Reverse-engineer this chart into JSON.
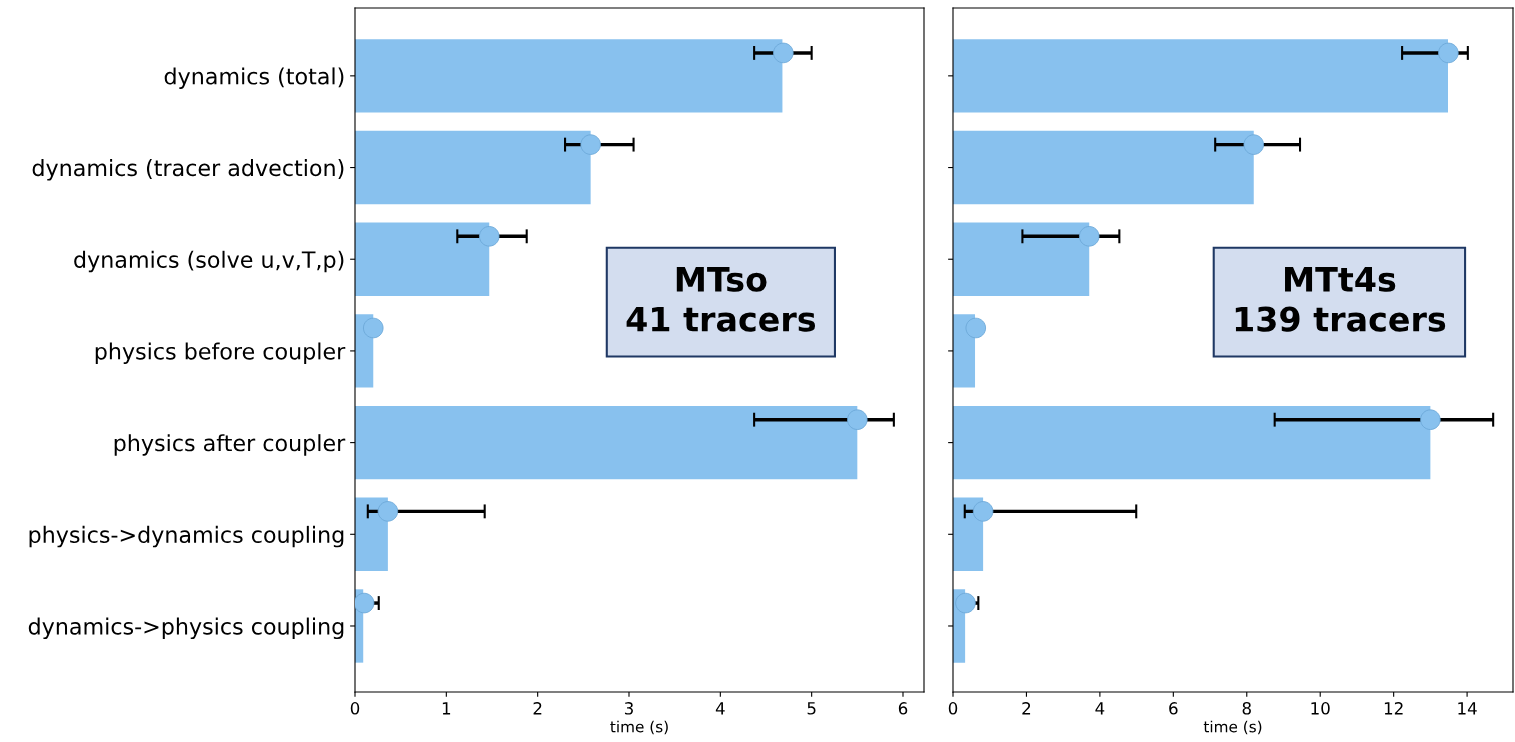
{
  "chart_data": [
    {
      "type": "bar",
      "orientation": "horizontal",
      "xlabel": "time (s)",
      "annotations": [
        "MTso\n41 tracers"
      ],
      "categories": [
        "dynamics (total)",
        "dynamics (tracer advection)",
        "dynamics (solve u,v,T,p)",
        "physics before coupler",
        "physics after coupler",
        "physics->dynamics coupling",
        "dynamics->physics coupling"
      ],
      "series": [
        {
          "type": "bar",
          "color": "#88c1ee",
          "values": [
            4.68,
            2.58,
            1.47,
            0.2,
            5.5,
            0.36,
            0.09
          ]
        },
        {
          "type": "scatter",
          "color": "#88c1ee",
          "marker": "circle",
          "x": [
            "dynamics (total)",
            "dynamics (tracer advection)",
            "dynamics (solve u,v,T,p)",
            "physics before coupler",
            "physics after coupler",
            "physics->dynamics coupling",
            "dynamics->physics coupling"
          ],
          "values": [
            4.69,
            2.58,
            1.47,
            0.2,
            5.5,
            0.36,
            0.1
          ],
          "errors": [
            [
              4.37,
              5.0
            ],
            [
              2.3,
              3.05
            ],
            [
              1.12,
              1.88
            ],
            null,
            [
              4.37,
              5.9
            ],
            [
              0.14,
              1.42
            ],
            [
              0.1,
              0.26
            ]
          ]
        }
      ],
      "xlim": [
        0,
        6.23
      ],
      "xticks": [
        0,
        1,
        2,
        3,
        4,
        5,
        6
      ]
    },
    {
      "type": "bar",
      "orientation": "horizontal",
      "xlabel": "time (s)",
      "annotations": [
        "MTt4s\n139 tracers"
      ],
      "tick_labels": "x",
      "categories": [
        "dynamics (total)",
        "dynamics (tracer advection)",
        "dynamics (solve u,v,T,p)",
        "physics before coupler",
        "physics after coupler",
        "physics->dynamics coupling",
        "dynamics->physics coupling"
      ],
      "series": [
        {
          "type": "bar",
          "color": "#88c1ee",
          "values": [
            13.48,
            8.19,
            3.71,
            0.6,
            13.0,
            0.82,
            0.33
          ]
        },
        {
          "type": "scatter",
          "color": "#88c1ee",
          "marker": "circle",
          "x": [
            "dynamics (total)",
            "dynamics (tracer advection)",
            "dynamics (solve u,v,T,p)",
            "physics before coupler",
            "physics after coupler",
            "physics->dynamics coupling",
            "dynamics->physics coupling"
          ],
          "values": [
            13.49,
            8.19,
            3.71,
            0.62,
            13.0,
            0.82,
            0.34
          ],
          "errors": [
            [
              12.23,
              14.02
            ],
            [
              7.14,
              9.45
            ],
            [
              1.89,
              4.53
            ],
            null,
            [
              8.76,
              14.71
            ],
            [
              0.32,
              4.99
            ],
            [
              0.19,
              0.69
            ]
          ]
        }
      ],
      "xlim": [
        0,
        15.25
      ],
      "xticks": [
        0,
        2,
        4,
        6,
        8,
        10,
        12,
        14
      ]
    }
  ]
}
